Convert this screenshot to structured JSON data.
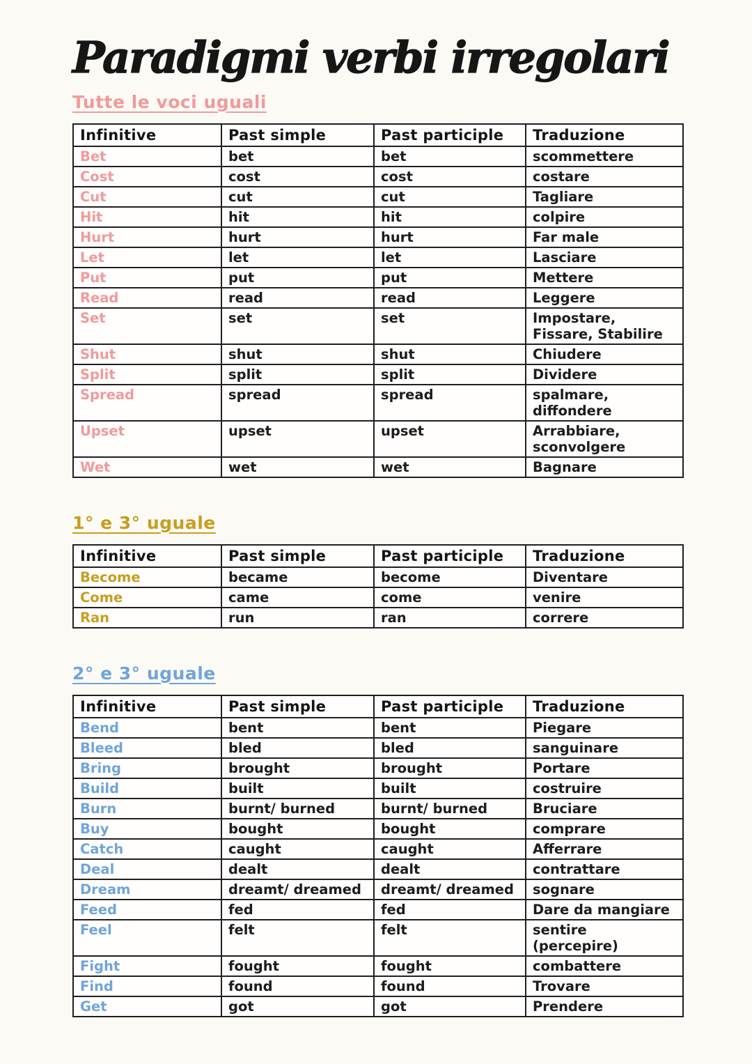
{
  "page": {
    "title": "Paradigmi verbi irregolari",
    "background_color": "#fcfaf5",
    "text_color": "#1c1c1c"
  },
  "columns": [
    "Infinitive",
    "Past simple",
    "Past participle",
    "Traduzione"
  ],
  "sections": [
    {
      "heading": "Tutte le voci uguali",
      "accent": "#f09a9b",
      "rows": [
        {
          "infinitive": "Bet",
          "past_simple": "bet",
          "past_participle": "bet",
          "traduzione": "scommettere"
        },
        {
          "infinitive": "Cost",
          "past_simple": "cost",
          "past_participle": "cost",
          "traduzione": "costare"
        },
        {
          "infinitive": "Cut",
          "past_simple": "cut",
          "past_participle": "cut",
          "traduzione": "Tagliare"
        },
        {
          "infinitive": "Hit",
          "past_simple": "hit",
          "past_participle": "hit",
          "traduzione": "colpire"
        },
        {
          "infinitive": "Hurt",
          "past_simple": "hurt",
          "past_participle": "hurt",
          "traduzione": "Far male"
        },
        {
          "infinitive": "Let",
          "past_simple": "let",
          "past_participle": "let",
          "traduzione": "Lasciare"
        },
        {
          "infinitive": "Put",
          "past_simple": "put",
          "past_participle": "put",
          "traduzione": "Mettere"
        },
        {
          "infinitive": "Read",
          "past_simple": "read",
          "past_participle": "read",
          "traduzione": "Leggere"
        },
        {
          "infinitive": "Set",
          "past_simple": "set",
          "past_participle": "set",
          "traduzione": "Impostare,\nFissare, Stabilire"
        },
        {
          "infinitive": "Shut",
          "past_simple": "shut",
          "past_participle": "shut",
          "traduzione": "Chiudere"
        },
        {
          "infinitive": "Split",
          "past_simple": "split",
          "past_participle": "split",
          "traduzione": "Dividere"
        },
        {
          "infinitive": "Spread",
          "past_simple": "spread",
          "past_participle": "spread",
          "traduzione": "spalmare,\ndiffondere"
        },
        {
          "infinitive": "Upset",
          "past_simple": "upset",
          "past_participle": "upset",
          "traduzione": "Arrabbiare,\nsconvolgere"
        },
        {
          "infinitive": "Wet",
          "past_simple": "wet",
          "past_participle": "wet",
          "traduzione": "Bagnare"
        }
      ]
    },
    {
      "heading": "1° e 3° uguale",
      "accent": "#c79e1e",
      "rows": [
        {
          "infinitive": "Become",
          "past_simple": "became",
          "past_participle": "become",
          "traduzione": "Diventare"
        },
        {
          "infinitive": "Come",
          "past_simple": "came",
          "past_participle": "come",
          "traduzione": "venire"
        },
        {
          "infinitive": "Ran",
          "past_simple": "run",
          "past_participle": "ran",
          "traduzione": "correre"
        }
      ]
    },
    {
      "heading": "2° e 3° uguale",
      "accent": "#6fa5da",
      "rows": [
        {
          "infinitive": "Bend",
          "past_simple": "bent",
          "past_participle": "bent",
          "traduzione": "Piegare"
        },
        {
          "infinitive": "Bleed",
          "past_simple": "bled",
          "past_participle": "bled",
          "traduzione": "sanguinare"
        },
        {
          "infinitive": "Bring",
          "past_simple": "brought",
          "past_participle": "brought",
          "traduzione": "Portare"
        },
        {
          "infinitive": "Build",
          "past_simple": "built",
          "past_participle": "built",
          "traduzione": "costruire"
        },
        {
          "infinitive": "Burn",
          "past_simple": "burnt/ burned",
          "past_participle": "burnt/ burned",
          "traduzione": "Bruciare"
        },
        {
          "infinitive": "Buy",
          "past_simple": "bought",
          "past_participle": "bought",
          "traduzione": "comprare"
        },
        {
          "infinitive": "Catch",
          "past_simple": "caught",
          "past_participle": "caught",
          "traduzione": "Afferrare"
        },
        {
          "infinitive": "Deal",
          "past_simple": "dealt",
          "past_participle": "dealt",
          "traduzione": "contrattare"
        },
        {
          "infinitive": "Dream",
          "past_simple": "dreamt/ dreamed",
          "past_participle": "dreamt/ dreamed",
          "traduzione": "sognare"
        },
        {
          "infinitive": "Feed",
          "past_simple": "fed",
          "past_participle": "fed",
          "traduzione": "Dare da mangiare"
        },
        {
          "infinitive": "Feel",
          "past_simple": "felt",
          "past_participle": "felt",
          "traduzione": "sentire (percepire)"
        },
        {
          "infinitive": "Fight",
          "past_simple": "fought",
          "past_participle": "fought",
          "traduzione": "combattere"
        },
        {
          "infinitive": "Find",
          "past_simple": "found",
          "past_participle": "found",
          "traduzione": "Trovare"
        },
        {
          "infinitive": "Get",
          "past_simple": "got",
          "past_participle": "got",
          "traduzione": "Prendere"
        }
      ]
    }
  ]
}
